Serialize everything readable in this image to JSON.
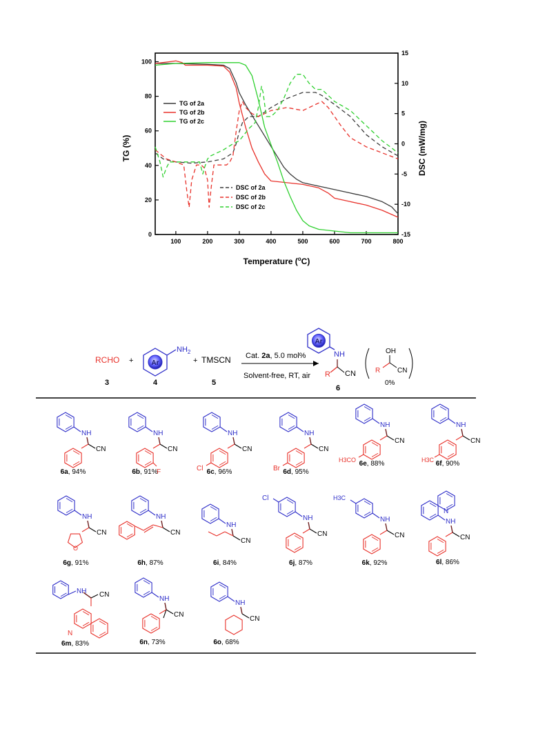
{
  "colors": {
    "red": "#e8312a",
    "blue": "#2e2ec9",
    "green": "#2ed02e",
    "black": "#333333",
    "bond": "#6d1e1e"
  },
  "chart_data": {
    "type": "line",
    "xlabel": "Temperature (°C)",
    "ylabel": "TG (%)",
    "y2label": "DSC (mW/mg)",
    "xlim": [
      35,
      800
    ],
    "ylim": [
      0,
      105
    ],
    "y2lim": [
      -15,
      15
    ],
    "xticks": [
      100,
      200,
      300,
      400,
      500,
      600,
      700,
      800
    ],
    "yticks": [
      0,
      20,
      40,
      60,
      80,
      100
    ],
    "y2ticks": [
      -15,
      -10,
      -5,
      0,
      5,
      10,
      15
    ],
    "legend_tg": "top-left",
    "legend_dsc": "bottom-center",
    "series": [
      {
        "name": "TG of 2a",
        "axis": "left",
        "style": "solid",
        "color": "#3a3a3a",
        "x": [
          35,
          100,
          200,
          250,
          270,
          290,
          300,
          320,
          340,
          360,
          380,
          400,
          420,
          440,
          460,
          480,
          500,
          550,
          600,
          650,
          700,
          750,
          780,
          800
        ],
        "y": [
          99,
          99,
          98.5,
          98,
          96,
          88,
          82,
          75,
          69,
          63,
          57,
          51,
          45,
          39,
          35,
          32,
          30,
          28,
          26,
          24,
          22,
          19,
          16,
          12
        ]
      },
      {
        "name": "TG of 2b",
        "axis": "left",
        "style": "solid",
        "color": "#e8312a",
        "x": [
          35,
          80,
          100,
          120,
          130,
          150,
          200,
          250,
          270,
          290,
          300,
          320,
          340,
          360,
          380,
          400,
          450,
          500,
          550,
          580,
          600,
          650,
          700,
          750,
          800
        ],
        "y": [
          99,
          100,
          100.5,
          99.5,
          98,
          98,
          98,
          97.5,
          94,
          85,
          76,
          62,
          50,
          42,
          35,
          31,
          30,
          29,
          27,
          24,
          21,
          19,
          17,
          14,
          10
        ]
      },
      {
        "name": "TG of 2c",
        "axis": "left",
        "style": "solid",
        "color": "#2ed02e",
        "x": [
          35,
          100,
          200,
          300,
          320,
          340,
          360,
          380,
          400,
          420,
          440,
          460,
          480,
          500,
          520,
          550,
          600,
          650,
          700,
          750,
          800
        ],
        "y": [
          98,
          99,
          99.5,
          99.5,
          98,
          92,
          78,
          62,
          52,
          42,
          31,
          22,
          14,
          8,
          5,
          3,
          2,
          1,
          1,
          1,
          1
        ]
      },
      {
        "name": "DSC of 2a",
        "axis": "right",
        "style": "dashed",
        "color": "#3a3a3a",
        "x": [
          35,
          60,
          100,
          150,
          200,
          250,
          280,
          290,
          300,
          310,
          330,
          360,
          400,
          450,
          500,
          540,
          560,
          600,
          650,
          700,
          750,
          800
        ],
        "y": [
          -1.5,
          -2.5,
          -3,
          -3.2,
          -3,
          -2.5,
          -1.5,
          0,
          2,
          3.5,
          4.5,
          4.5,
          6,
          7.5,
          8.5,
          8.5,
          8,
          6.5,
          4.5,
          1.5,
          -0.5,
          -2
        ]
      },
      {
        "name": "DSC of 2b",
        "axis": "right",
        "style": "dashed",
        "color": "#e8312a",
        "x": [
          35,
          70,
          100,
          125,
          135,
          142,
          150,
          165,
          180,
          190,
          200,
          205,
          212,
          220,
          240,
          260,
          270,
          280,
          290,
          300,
          310,
          320,
          340,
          360,
          400,
          450,
          500,
          540,
          560,
          580,
          600,
          620,
          650,
          700,
          750,
          800
        ],
        "y": [
          -1,
          -2.5,
          -3,
          -3.5,
          -8,
          -10.5,
          -6,
          -3.5,
          -3.5,
          -4,
          -6,
          -10.5,
          -7,
          -3.5,
          -3.5,
          -3.5,
          -3,
          -2,
          2,
          5.5,
          7,
          6,
          5,
          4.5,
          5.5,
          6,
          5.5,
          6.5,
          7,
          6,
          4.5,
          3,
          1,
          -0.5,
          -1.5,
          -2.5
        ]
      },
      {
        "name": "DSC of 2c",
        "axis": "right",
        "style": "dashed",
        "color": "#2ed02e",
        "x": [
          35,
          50,
          60,
          70,
          80,
          90,
          100,
          150,
          175,
          185,
          190,
          200,
          210,
          250,
          280,
          300,
          330,
          350,
          360,
          370,
          375,
          385,
          400,
          420,
          440,
          460,
          480,
          500,
          520,
          540,
          560,
          600,
          650,
          700,
          750,
          800
        ],
        "y": [
          -0.5,
          -3,
          -5.5,
          -4,
          -3,
          -3,
          -3,
          -3,
          -3,
          -5,
          -4,
          -2.5,
          -2,
          -1,
          0,
          0.5,
          2.5,
          3.5,
          6,
          9.5,
          8.5,
          4.5,
          4.5,
          5.5,
          7.5,
          10,
          11.5,
          11.5,
          10,
          9,
          9,
          7,
          5.5,
          3,
          0.5,
          -1.5
        ]
      }
    ]
  },
  "scheme": {
    "reagent_3": "RCHO",
    "plus": "+",
    "reagent_5": "TMSCN",
    "ar": "Ar",
    "nh2": "NH",
    "sub2": "2",
    "label_3": "3",
    "label_4": "4",
    "label_5": "5",
    "label_6": "6",
    "cond_pre": "Cat. ",
    "cond_cat": "2a",
    "cond_post": ", 5.0 mol%",
    "cond_below": "Solvent-free, RT, air",
    "side_oh": "OH",
    "side_pct": "0%",
    "nh": "NH",
    "cn": "CN",
    "r": "R"
  },
  "products": [
    {
      "id": "6a",
      "yield": ", 94%"
    },
    {
      "id": "6b",
      "yield": ", 91%"
    },
    {
      "id": "6c",
      "yield": ", 96%"
    },
    {
      "id": "6d",
      "yield": ", 95%"
    },
    {
      "id": "6e",
      "yield": ", 88%"
    },
    {
      "id": "6f",
      "yield": ", 90%"
    },
    {
      "id": "6g",
      "yield": ", 91%"
    },
    {
      "id": "6h",
      "yield": ", 87%"
    },
    {
      "id": "6i",
      "yield": ", 84%"
    },
    {
      "id": "6j",
      "yield": ", 87%"
    },
    {
      "id": "6k",
      "yield": ", 92%"
    },
    {
      "id": "6l",
      "yield": ", 86%"
    },
    {
      "id": "6m",
      "yield": ", 83%"
    },
    {
      "id": "6n",
      "yield": ", 73%"
    },
    {
      "id": "6o",
      "yield": ", 68%"
    }
  ],
  "substituents": {
    "f": "F",
    "cl": "Cl",
    "br": "Br",
    "h3co": "H3CO",
    "h3c": "H3C",
    "n": "N",
    "o": "O"
  }
}
